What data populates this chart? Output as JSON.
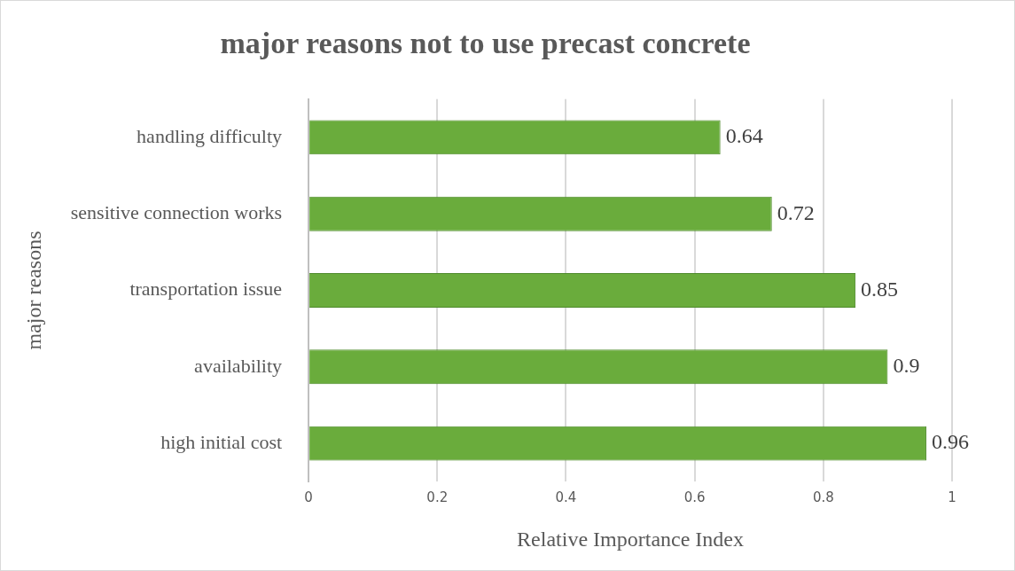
{
  "chart_data": {
    "type": "bar",
    "orientation": "horizontal",
    "title": "major reasons not to use precast concrete",
    "xlabel": "Relative Importance Index",
    "ylabel": "major reasons",
    "categories": [
      "handling difficulty",
      "sensitive connection works",
      "transportation issue",
      "availability",
      "high initial cost"
    ],
    "values": [
      0.64,
      0.72,
      0.85,
      0.9,
      0.96
    ],
    "color": "#6aac3c",
    "xlim": [
      0,
      1
    ],
    "xticks": [
      0,
      0.2,
      0.4,
      0.6,
      0.8,
      1
    ],
    "grid": "x",
    "data_labels": true,
    "legend": false
  }
}
